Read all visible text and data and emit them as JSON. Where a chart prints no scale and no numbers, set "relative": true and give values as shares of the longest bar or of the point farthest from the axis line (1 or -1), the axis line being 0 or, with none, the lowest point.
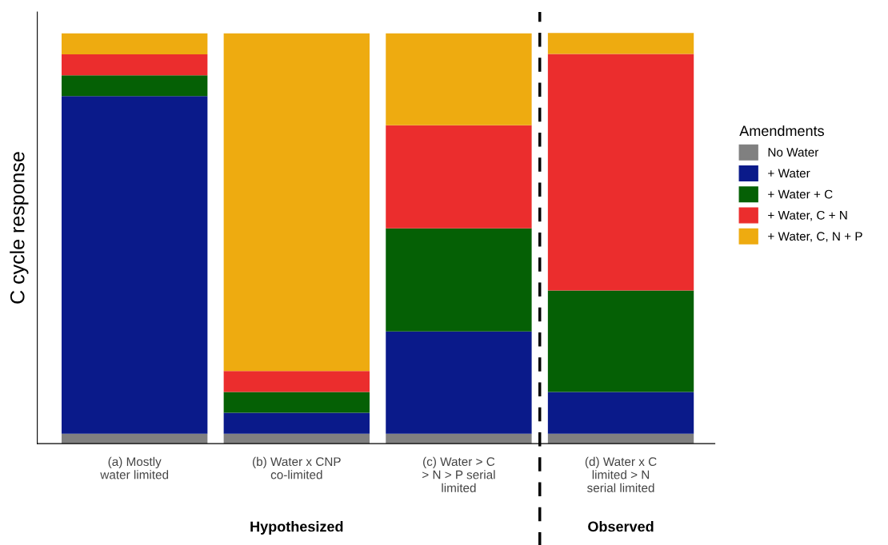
{
  "chart_data": {
    "type": "bar",
    "stacked": true,
    "relative": true,
    "ylabel": "C cycle response",
    "legend_title": "Amendments",
    "legend": "right",
    "grid": false,
    "categories": [
      "(a) Mostly\nwater limited",
      "(b) Water x CNP\nco-limited",
      "(c) Water > C\n> N > P serial\nlimited",
      "(d) Water x C\nlimited > N\nserial limited"
    ],
    "series": [
      {
        "name": "No Water",
        "color": "#808080",
        "values": [
          0.024,
          0.024,
          0.024,
          0.024
        ]
      },
      {
        "name": "+ Water",
        "color": "#0a1a8a",
        "values": [
          0.822,
          0.051,
          0.249,
          0.102
        ]
      },
      {
        "name": "+ Water + C",
        "color": "#056005",
        "values": [
          0.051,
          0.051,
          0.251,
          0.247
        ]
      },
      {
        "name": "+ Water, C + N",
        "color": "#eb2d2d",
        "values": [
          0.051,
          0.051,
          0.251,
          0.576
        ]
      },
      {
        "name": "+ Water, C, N + P",
        "color": "#eeab10",
        "values": [
          0.051,
          0.822,
          0.224,
          0.051
        ]
      }
    ],
    "annotations": [
      "Hypothesized",
      "Observed"
    ]
  }
}
